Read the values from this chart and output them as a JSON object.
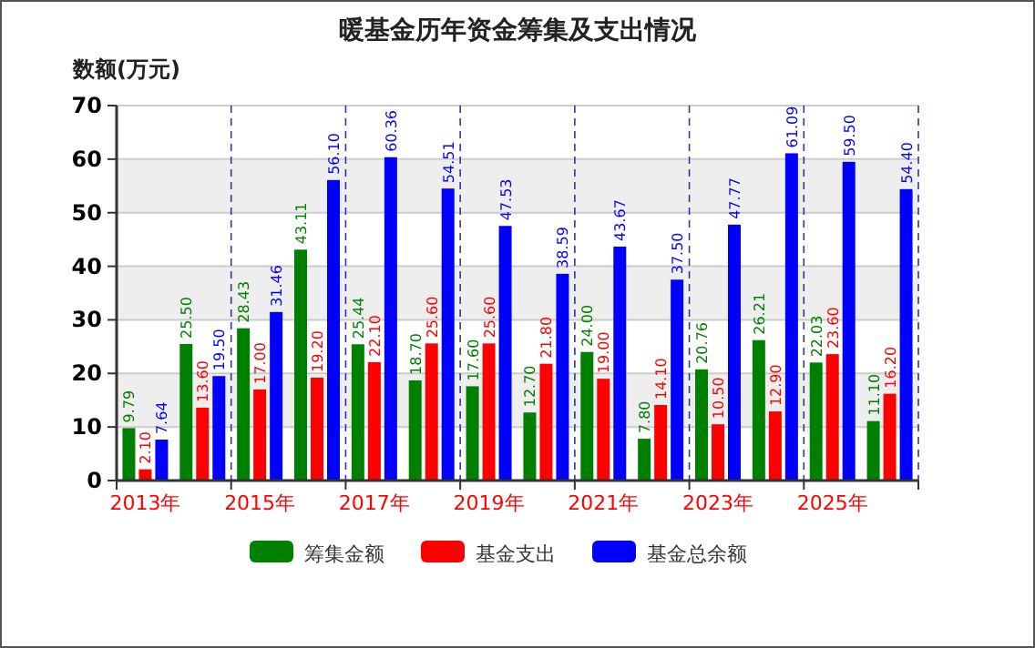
{
  "chart_data": {
    "type": "bar",
    "title": "暖基金历年资金筹集及支出情况",
    "ylabel": "数额(万元)",
    "categories": [
      "2013年",
      null,
      "2015年",
      null,
      "2017年",
      null,
      "2019年",
      null,
      "2021年",
      null,
      "2023年",
      null,
      "2025年",
      null
    ],
    "series": [
      {
        "name": "筹集金额",
        "color": "#008000",
        "values": [
          9.79,
          25.5,
          28.43,
          43.11,
          25.44,
          18.7,
          17.6,
          12.7,
          24,
          7.8,
          20.76,
          26.21,
          22.03,
          11.1
        ],
        "value_labels": [
          "9.79",
          "25.50",
          "28.43",
          "43.11",
          "25.44",
          "18.70",
          "17.60",
          "12.70",
          "24.00",
          "7.80",
          "20.76",
          "26.21",
          "22.03",
          "11.10"
        ]
      },
      {
        "name": "基金支出",
        "color": "#ff0000",
        "values": [
          2.1,
          13.6,
          17,
          19.2,
          22.1,
          25.6,
          25.6,
          21.8,
          19,
          14.1,
          10.5,
          12.9,
          23.6,
          16.2
        ],
        "value_labels": [
          "2.10",
          "13.60",
          "17.00",
          "19.20",
          "22.10",
          "25.60",
          "25.60",
          "21.80",
          "19.00",
          "14.10",
          "10.50",
          "12.90",
          "23.60",
          "16.20"
        ]
      },
      {
        "name": "基金总余额",
        "color": "#0000ff",
        "values": [
          7.64,
          19.5,
          31.46,
          56.1,
          60.36,
          54.51,
          47.53,
          38.59,
          43.67,
          37.5,
          47.77,
          61.09,
          59.5,
          54.4
        ],
        "value_labels": [
          "7.64",
          "19.50",
          "31.46",
          "56.10",
          "60.36",
          "54.51",
          "47.53",
          "38.59",
          "43.67",
          "37.50",
          "47.77",
          "61.09",
          "59.50",
          "54.40"
        ]
      }
    ],
    "ylim": [
      0,
      70
    ],
    "yticks": [
      0,
      10,
      20,
      30,
      40,
      50,
      60,
      70
    ],
    "grid": true,
    "legend": "bottom"
  }
}
